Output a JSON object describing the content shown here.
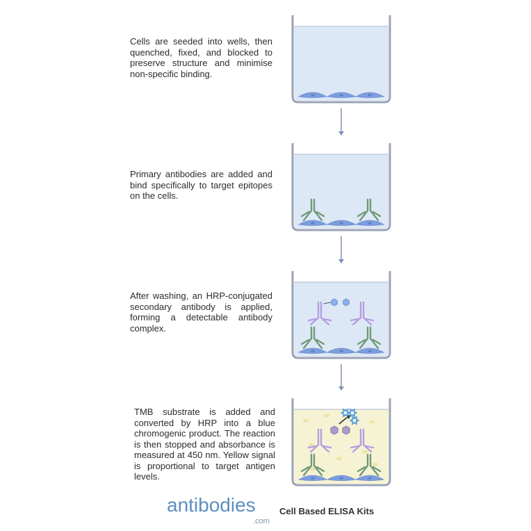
{
  "steps": [
    {
      "text": "Cells are seeded into wells, then quenched, fixed, and blocked to preserve structure and minimise non-specific binding."
    },
    {
      "text": "Primary antibodies are added and bind specifically to target epitopes on the cells."
    },
    {
      "text": "After washing, an HRP-conjugated secondary antibody is applied, forming a detectable antibody complex."
    },
    {
      "text": "TMB substrate is added and converted by HRP into a blue chromogenic product. The reaction is then stopped  and absorbance is measured at 450 nm. Yellow signal is proportional to target antigen levels."
    }
  ],
  "logo": {
    "name": "antibodies",
    "suffix": ".com"
  },
  "caption": "Cell Based ELISA Kits",
  "colors": {
    "well_border": "#9aa3b5",
    "buffer": "#dde8f6",
    "substrate": "#f6f3d4",
    "cell": "#7d9ee0",
    "primary_antibody": "#6f9a78",
    "secondary_antibody": "#b59ee0",
    "hrp": "#a89cc8",
    "tmb_product": "#5aa0d8",
    "arrow": "#7d93b3",
    "logo": "#5b8fbf"
  }
}
